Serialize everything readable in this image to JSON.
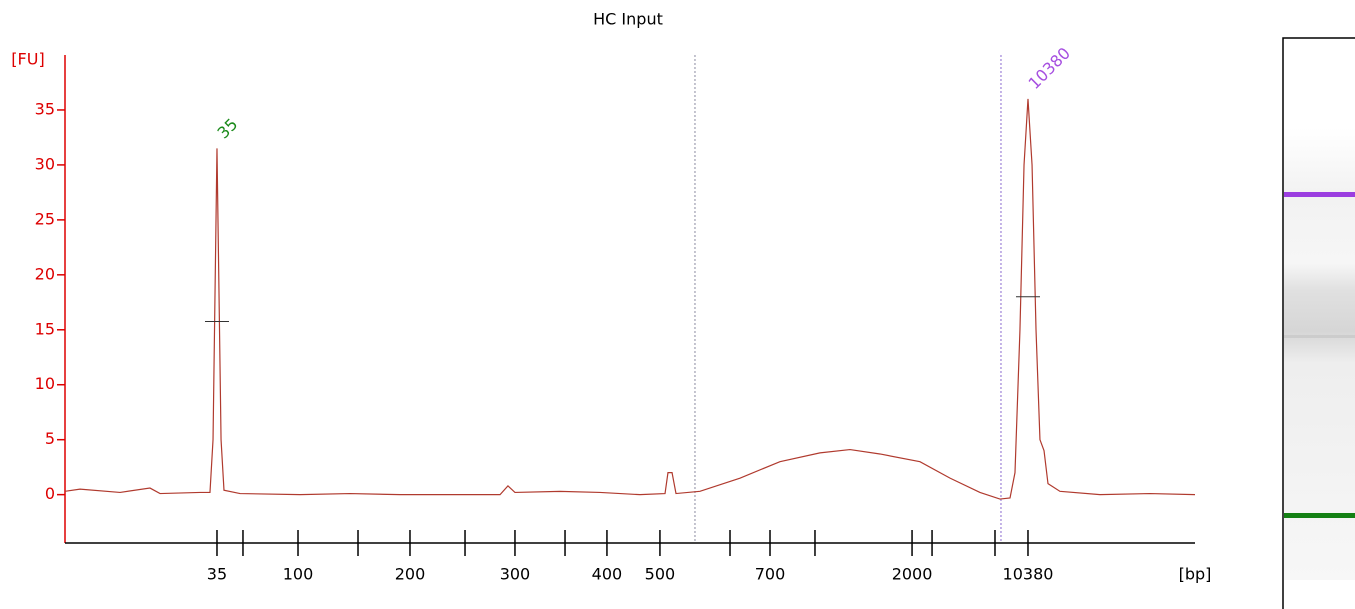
{
  "chart_data": {
    "type": "line",
    "title": "HC Input",
    "y_label": "[FU]",
    "x_label": "[bp]",
    "x": [
      0,
      1.33,
      4.87,
      7.52,
      8.41,
      11.95,
      12.83,
      13.1,
      13.45,
      13.81,
      14.07,
      15.49,
      20.8,
      25.22,
      29.65,
      34.07,
      38.5,
      39.2,
      39.82,
      43.81,
      47.35,
      50.88,
      53.1,
      53.36,
      53.72,
      54.07,
      56.19,
      59.73,
      63.27,
      66.81,
      69.47,
      72.12,
      75.66,
      78.32,
      80.97,
      82.74,
      83.63,
      84.07,
      84.51,
      84.87,
      85.22,
      85.58,
      85.93,
      86.28,
      86.64,
      86.99,
      88.05,
      91.59,
      96.02,
      100
    ],
    "values": [
      0.3,
      0.5,
      0.2,
      0.6,
      0.1,
      0.2,
      0.2,
      5,
      31.5,
      5,
      0.4,
      0.1,
      0,
      0.1,
      0,
      0,
      0,
      0.8,
      0.2,
      0.3,
      0.2,
      0,
      0.1,
      2,
      2,
      0.1,
      0.3,
      1.5,
      3,
      3.8,
      4.1,
      3.7,
      3,
      1.5,
      0.2,
      -0.4,
      -0.3,
      2,
      15,
      30,
      36,
      30,
      15,
      5,
      4,
      1,
      0.3,
      0,
      0.1,
      0
    ],
    "color": "#b03a2e",
    "xlim": [
      0,
      100
    ],
    "ylim": [
      -4.4,
      40
    ],
    "yticks": [
      0,
      5,
      10,
      15,
      20,
      25,
      30,
      35
    ],
    "xticks": [
      {
        "value": 13.45,
        "label": "35"
      },
      {
        "value": 15.75,
        "label": null
      },
      {
        "value": 20.62,
        "label": "100"
      },
      {
        "value": 25.93,
        "label": null
      },
      {
        "value": 30.53,
        "label": "200"
      },
      {
        "value": 35.4,
        "label": null
      },
      {
        "value": 39.82,
        "label": "300"
      },
      {
        "value": 44.25,
        "label": null
      },
      {
        "value": 47.96,
        "label": "400"
      },
      {
        "value": 52.65,
        "label": "500"
      },
      {
        "value": 58.85,
        "label": null
      },
      {
        "value": 62.39,
        "label": "700"
      },
      {
        "value": 66.37,
        "label": null
      },
      {
        "value": 74.96,
        "label": "2000"
      },
      {
        "value": 76.73,
        "label": null
      },
      {
        "value": 82.3,
        "label": null
      },
      {
        "value": 85.22,
        "label": "10380"
      }
    ],
    "region_lines": [
      55.75,
      82.83
    ],
    "annotations": [
      {
        "text": "35",
        "x": 13.45,
        "y": 31.5,
        "color": "#1a8a1a"
      },
      {
        "text": "10380",
        "x": 85.22,
        "y": 36,
        "color": "#a64fe0"
      }
    ]
  }
}
